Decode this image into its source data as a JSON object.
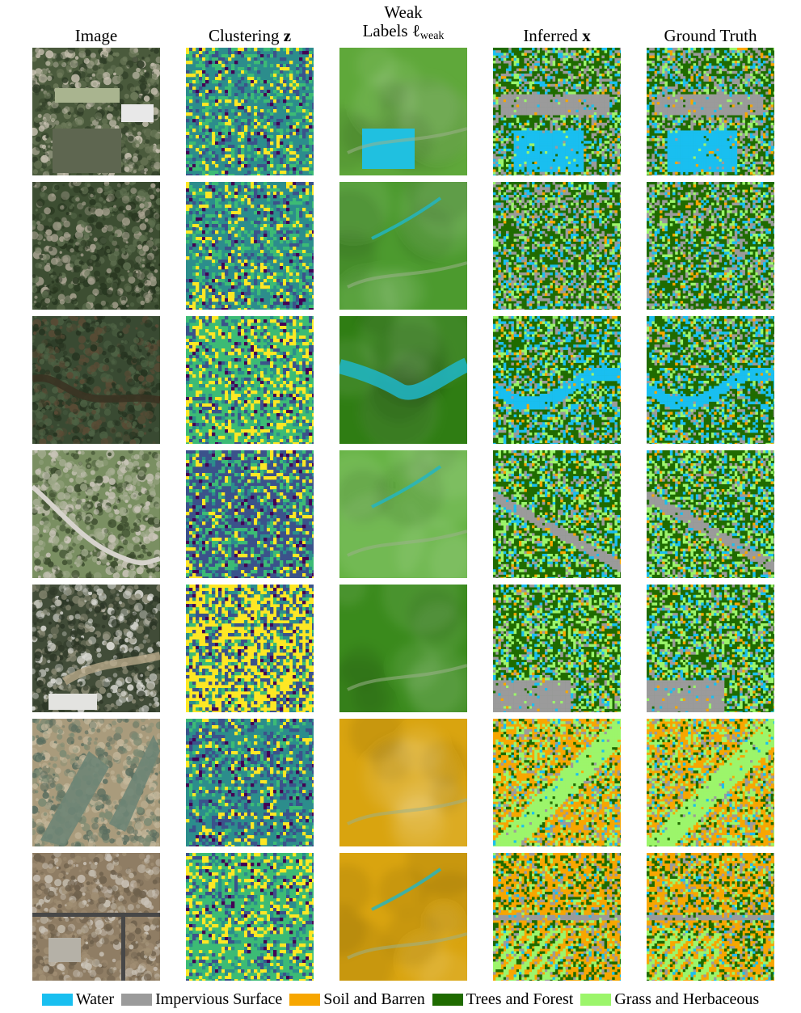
{
  "figure": {
    "columns": [
      {
        "key": "image",
        "line1": "",
        "line2": "Image",
        "math": "",
        "sub": ""
      },
      {
        "key": "clustering",
        "line1": "",
        "line2": "Clustering ",
        "math": "z",
        "sub": ""
      },
      {
        "key": "weak",
        "line1": "Weak",
        "line2": "Labels ℓ",
        "math": "",
        "sub": "weak"
      },
      {
        "key": "inferred",
        "line1": "",
        "line2": "Inferred ",
        "math": "x",
        "sub": ""
      },
      {
        "key": "truth",
        "line1": "",
        "line2": "Ground Truth",
        "math": "",
        "sub": ""
      }
    ],
    "rows": 7,
    "legend": [
      {
        "label": "Water",
        "color": "#19bff0"
      },
      {
        "label": "Impervious Surface",
        "color": "#9b9b9b"
      },
      {
        "label": "Soil and Barren",
        "color": "#f7a600"
      },
      {
        "label": "Trees and Forest",
        "color": "#1f6b00"
      },
      {
        "label": "Grass and Herbaceous",
        "color": "#9cf56b"
      }
    ],
    "row_styles": [
      {
        "photo": "urban-forest",
        "cluster": [
          "#2c8d8c",
          "#3cbb75",
          "#fde725",
          "#3b528b",
          "#440154"
        ],
        "weak_base": "#5fa83a",
        "weak_features": [
          "water-pond",
          "roads"
        ],
        "classes": [
          "#1f6b00",
          "#9b9b9b",
          "#9cf56b",
          "#19bff0",
          "#f7a600"
        ]
      },
      {
        "photo": "suburban-forest",
        "cluster": [
          "#2c8d8c",
          "#3cbb75",
          "#fde725",
          "#3b528b",
          "#440154"
        ],
        "weak_base": "#4c9a2e",
        "weak_features": [
          "roads",
          "stream"
        ],
        "classes": [
          "#1f6b00",
          "#9b9b9b",
          "#9cf56b",
          "#19bff0",
          "#f7a600"
        ]
      },
      {
        "photo": "forest-river",
        "cluster": [
          "#3cbb75",
          "#fde725",
          "#2c8d8c",
          "#3b528b",
          "#440154"
        ],
        "weak_base": "#2f7d13",
        "weak_features": [
          "river"
        ],
        "classes": [
          "#1f6b00",
          "#19bff0",
          "#9b9b9b",
          "#9cf56b",
          "#f7a600"
        ]
      },
      {
        "photo": "golf-suburb",
        "cluster": [
          "#3b528b",
          "#3cbb75",
          "#fde725",
          "#2c8d8c",
          "#440154"
        ],
        "weak_base": "#66b344",
        "weak_features": [
          "stream",
          "roads"
        ],
        "classes": [
          "#1f6b00",
          "#9cf56b",
          "#9b9b9b",
          "#19bff0",
          "#f7a600"
        ]
      },
      {
        "photo": "forest-building",
        "cluster": [
          "#fde725",
          "#3b528b",
          "#2c8d8c",
          "#3cbb75",
          "#440154"
        ],
        "weak_base": "#3a8a1c",
        "weak_features": [
          "roads"
        ],
        "classes": [
          "#1f6b00",
          "#9cf56b",
          "#9b9b9b",
          "#19bff0",
          "#f7a600"
        ]
      },
      {
        "photo": "arid-wetland",
        "cluster": [
          "#2c8d8c",
          "#3b528b",
          "#fde725",
          "#3cbb75",
          "#440154"
        ],
        "weak_base": "#d9a40f",
        "weak_features": [
          "roads"
        ],
        "classes": [
          "#f7a600",
          "#9cf56b",
          "#9b9b9b",
          "#1f6b00",
          "#19bff0"
        ]
      },
      {
        "photo": "desert-development",
        "cluster": [
          "#3cbb75",
          "#fde725",
          "#2c8d8c",
          "#3b528b",
          "#440154"
        ],
        "weak_base": "#d9a40f",
        "weak_features": [
          "roads",
          "stream"
        ],
        "classes": [
          "#f7a600",
          "#1f6b00",
          "#9b9b9b",
          "#9cf56b",
          "#19bff0"
        ]
      }
    ]
  }
}
